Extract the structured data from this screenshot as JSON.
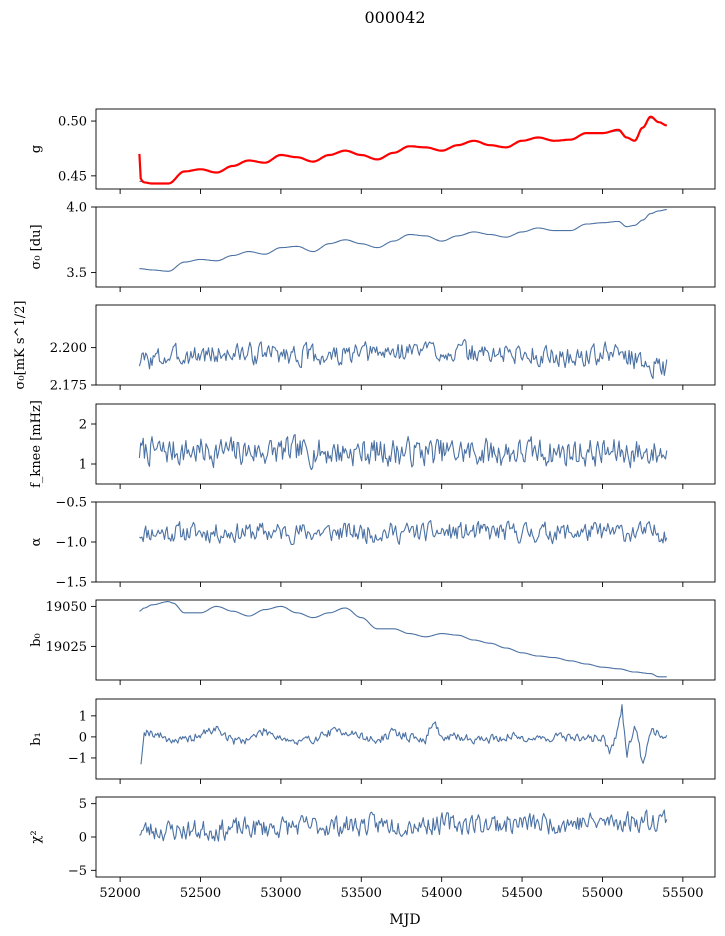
{
  "figure": {
    "title": "000042"
  },
  "colors": {
    "series": "#4c72a4",
    "fit": "#ff0000",
    "axis": "#000000"
  },
  "chart_data": [
    {
      "type": "line",
      "ylabel": "g",
      "xlim": [
        51850,
        55700
      ],
      "ylim": [
        0.438,
        0.511
      ],
      "yticks": [
        0.45,
        0.5
      ],
      "ytick_labels": [
        "0.45",
        "0.50"
      ],
      "series": [
        {
          "color": "#4c72a4",
          "x": [
            52120,
            52200,
            52300,
            52400,
            52500,
            52600,
            52700,
            52800,
            52900,
            53000,
            53100,
            53200,
            53300,
            53400,
            53500,
            53600,
            53700,
            53800,
            53900,
            54000,
            54100,
            54200,
            54300,
            54400,
            54500,
            54600,
            54700,
            54800,
            54900,
            55000,
            55100,
            55150,
            55200,
            55250,
            55300,
            55350,
            55400
          ],
          "y": [
            0.445,
            0.443,
            0.443,
            0.454,
            0.456,
            0.453,
            0.459,
            0.464,
            0.462,
            0.469,
            0.467,
            0.463,
            0.469,
            0.473,
            0.469,
            0.465,
            0.471,
            0.477,
            0.476,
            0.473,
            0.478,
            0.482,
            0.478,
            0.476,
            0.482,
            0.485,
            0.482,
            0.483,
            0.489,
            0.489,
            0.491,
            0.485,
            0.482,
            0.494,
            0.503,
            0.499,
            0.496
          ]
        },
        {
          "color": "#ff0000",
          "x": [
            52120,
            52130,
            52150,
            52200,
            52300,
            52400,
            52500,
            52600,
            52700,
            52800,
            52900,
            53000,
            53100,
            53200,
            53300,
            53400,
            53500,
            53600,
            53700,
            53800,
            53900,
            54000,
            54100,
            54200,
            54300,
            54400,
            54500,
            54600,
            54700,
            54800,
            54900,
            55000,
            55100,
            55150,
            55200,
            55250,
            55300,
            55350,
            55400
          ],
          "y": [
            0.47,
            0.446,
            0.444,
            0.443,
            0.443,
            0.454,
            0.456,
            0.453,
            0.459,
            0.464,
            0.462,
            0.469,
            0.467,
            0.463,
            0.469,
            0.473,
            0.469,
            0.465,
            0.471,
            0.477,
            0.476,
            0.473,
            0.478,
            0.482,
            0.478,
            0.476,
            0.482,
            0.485,
            0.482,
            0.483,
            0.489,
            0.489,
            0.492,
            0.485,
            0.482,
            0.494,
            0.504,
            0.499,
            0.496
          ]
        }
      ]
    },
    {
      "type": "line",
      "ylabel": "σ₀ [du]",
      "xlim": [
        51850,
        55700
      ],
      "ylim": [
        3.39,
        4.0
      ],
      "yticks": [
        3.5,
        4.0
      ],
      "ytick_labels": [
        "3.5",
        "4.0"
      ],
      "series": [
        {
          "color": "#4c72a4",
          "x": [
            52120,
            52200,
            52300,
            52400,
            52500,
            52600,
            52700,
            52800,
            52900,
            53000,
            53100,
            53200,
            53300,
            53400,
            53500,
            53600,
            53700,
            53800,
            53900,
            54000,
            54100,
            54200,
            54300,
            54400,
            54500,
            54600,
            54700,
            54800,
            54900,
            55000,
            55100,
            55150,
            55200,
            55250,
            55300,
            55350,
            55400
          ],
          "y": [
            3.53,
            3.52,
            3.51,
            3.58,
            3.6,
            3.59,
            3.63,
            3.66,
            3.64,
            3.69,
            3.7,
            3.66,
            3.72,
            3.75,
            3.72,
            3.69,
            3.74,
            3.79,
            3.78,
            3.74,
            3.78,
            3.81,
            3.79,
            3.77,
            3.81,
            3.84,
            3.82,
            3.82,
            3.87,
            3.88,
            3.89,
            3.85,
            3.86,
            3.9,
            3.95,
            3.97,
            3.98
          ]
        }
      ]
    },
    {
      "type": "line",
      "ylabel": "σ₀[mK s^1/2]",
      "xlim": [
        51850,
        55700
      ],
      "ylim": [
        2.175,
        2.2285
      ],
      "yticks": [
        2.175,
        2.2
      ],
      "ytick_labels": [
        "2.175",
        "2.200"
      ],
      "noise": {
        "color": "#4c72a4",
        "x_start": 52120,
        "x_end": 55400,
        "points": 420,
        "amplitude": 0.004,
        "seed": 3
      },
      "series": [
        {
          "color": "#4c72a4",
          "x": [
            52120,
            52400,
            52700,
            53000,
            53300,
            53600,
            53900,
            54200,
            54500,
            54800,
            55100,
            55250,
            55400
          ],
          "y": [
            2.191,
            2.195,
            2.196,
            2.196,
            2.194,
            2.196,
            2.199,
            2.196,
            2.196,
            2.193,
            2.197,
            2.19,
            2.186
          ]
        }
      ]
    },
    {
      "type": "line",
      "ylabel": "f_knee [mHz]",
      "xlim": [
        51850,
        55700
      ],
      "ylim": [
        0.5,
        2.5
      ],
      "yticks": [
        1,
        2
      ],
      "ytick_labels": [
        "1",
        "2"
      ],
      "noise": {
        "color": "#4c72a4",
        "x_start": 52120,
        "x_end": 55400,
        "points": 420,
        "amplitude": 0.2,
        "seed": 7
      },
      "series": [
        {
          "color": "#4c72a4",
          "x": [
            52120,
            55400
          ],
          "y": [
            1.32,
            1.28
          ]
        }
      ]
    },
    {
      "type": "line",
      "ylabel": "α",
      "xlim": [
        51850,
        55700
      ],
      "ylim": [
        -1.5,
        -0.5
      ],
      "yticks": [
        -1.5,
        -1.0,
        -0.5
      ],
      "ytick_labels": [
        "−1.5",
        "−1.0",
        "−0.5"
      ],
      "noise": {
        "color": "#4c72a4",
        "x_start": 52120,
        "x_end": 55400,
        "points": 420,
        "amplitude": 0.07,
        "seed": 11
      },
      "series": [
        {
          "color": "#4c72a4",
          "x": [
            52120,
            55400
          ],
          "y": [
            -0.88,
            -0.88
          ]
        }
      ]
    },
    {
      "type": "line",
      "ylabel": "b₀",
      "xlim": [
        51850,
        55700
      ],
      "ylim": [
        19004,
        19054
      ],
      "yticks": [
        19025,
        19050
      ],
      "ytick_labels": [
        "19025",
        "19050"
      ],
      "series": [
        {
          "color": "#4c72a4",
          "x": [
            52120,
            52150,
            52200,
            52300,
            52330,
            52400,
            52500,
            52600,
            52700,
            52800,
            52900,
            53000,
            53100,
            53200,
            53300,
            53400,
            53500,
            53600,
            53700,
            53800,
            53900,
            54000,
            54100,
            54200,
            54300,
            54400,
            54500,
            54600,
            54700,
            54800,
            54900,
            55000,
            55100,
            55200,
            55300,
            55350,
            55400
          ],
          "y": [
            19047,
            19049,
            19051,
            19053,
            19052,
            19046,
            19046,
            19050,
            19047,
            19044,
            19048,
            19050,
            19046,
            19043,
            19046,
            19049,
            19043,
            19036,
            19036,
            19033,
            19031,
            19033,
            19032,
            19029,
            19027,
            19024,
            19021,
            19019,
            19018,
            19016,
            19014,
            19012,
            19011,
            19009,
            19008,
            19006,
            19006
          ]
        }
      ]
    },
    {
      "type": "line",
      "ylabel": "b₁",
      "xlim": [
        51850,
        55700
      ],
      "ylim": [
        -2.0,
        1.8
      ],
      "yticks": [
        -1,
        0,
        1
      ],
      "ytick_labels": [
        "−1",
        "0",
        "1"
      ],
      "noise": {
        "color": "#4c72a4",
        "x_start": 52150,
        "x_end": 55400,
        "points": 420,
        "amplitude": 0.12,
        "seed": 19
      },
      "series": [
        {
          "color": "#4c72a4",
          "x": [
            52130,
            52150,
            52200,
            52300,
            52400,
            52500,
            52600,
            52700,
            52800,
            52900,
            53000,
            53100,
            53200,
            53300,
            53400,
            53500,
            53600,
            53700,
            53800,
            53900,
            53950,
            54000,
            54100,
            54200,
            54300,
            54400,
            54500,
            54600,
            54700,
            54800,
            54900,
            55000,
            55050,
            55100,
            55120,
            55150,
            55200,
            55250,
            55300,
            55400
          ],
          "y": [
            -1.3,
            0.3,
            0.2,
            -0.1,
            -0.2,
            0.1,
            0.4,
            -0.2,
            -0.1,
            0.3,
            0.0,
            -0.3,
            -0.1,
            0.2,
            0.3,
            0.0,
            -0.2,
            0.2,
            0.0,
            -0.2,
            0.9,
            -0.1,
            0.0,
            -0.1,
            -0.1,
            0.0,
            0.0,
            -0.1,
            0.0,
            0.0,
            -0.1,
            0.0,
            -0.7,
            0.3,
            1.5,
            -0.9,
            0.6,
            -1.3,
            0.4,
            0.0
          ]
        }
      ]
    },
    {
      "type": "line",
      "ylabel": "χ²",
      "xlim": [
        51850,
        55700
      ],
      "ylim": [
        -6,
        6
      ],
      "yticks": [
        -5,
        0,
        5
      ],
      "ytick_labels": [
        "−5",
        "0",
        "5"
      ],
      "xticks": [
        52000,
        52500,
        53000,
        53500,
        54000,
        54500,
        55000,
        55500
      ],
      "xtick_labels": [
        "52000",
        "52500",
        "53000",
        "53500",
        "54000",
        "54500",
        "55000",
        "55500"
      ],
      "xlabel": "MJD",
      "noise": {
        "color": "#4c72a4",
        "x_start": 52120,
        "x_end": 55400,
        "points": 420,
        "amplitude": 0.9,
        "seed": 23
      },
      "series": [
        {
          "color": "#4c72a4",
          "x": [
            52120,
            52500,
            53000,
            53500,
            54000,
            54500,
            55000,
            55300,
            55400
          ],
          "y": [
            1.0,
            1.0,
            1.5,
            1.8,
            2.0,
            2.0,
            2.2,
            2.5,
            3.0
          ]
        }
      ]
    }
  ]
}
